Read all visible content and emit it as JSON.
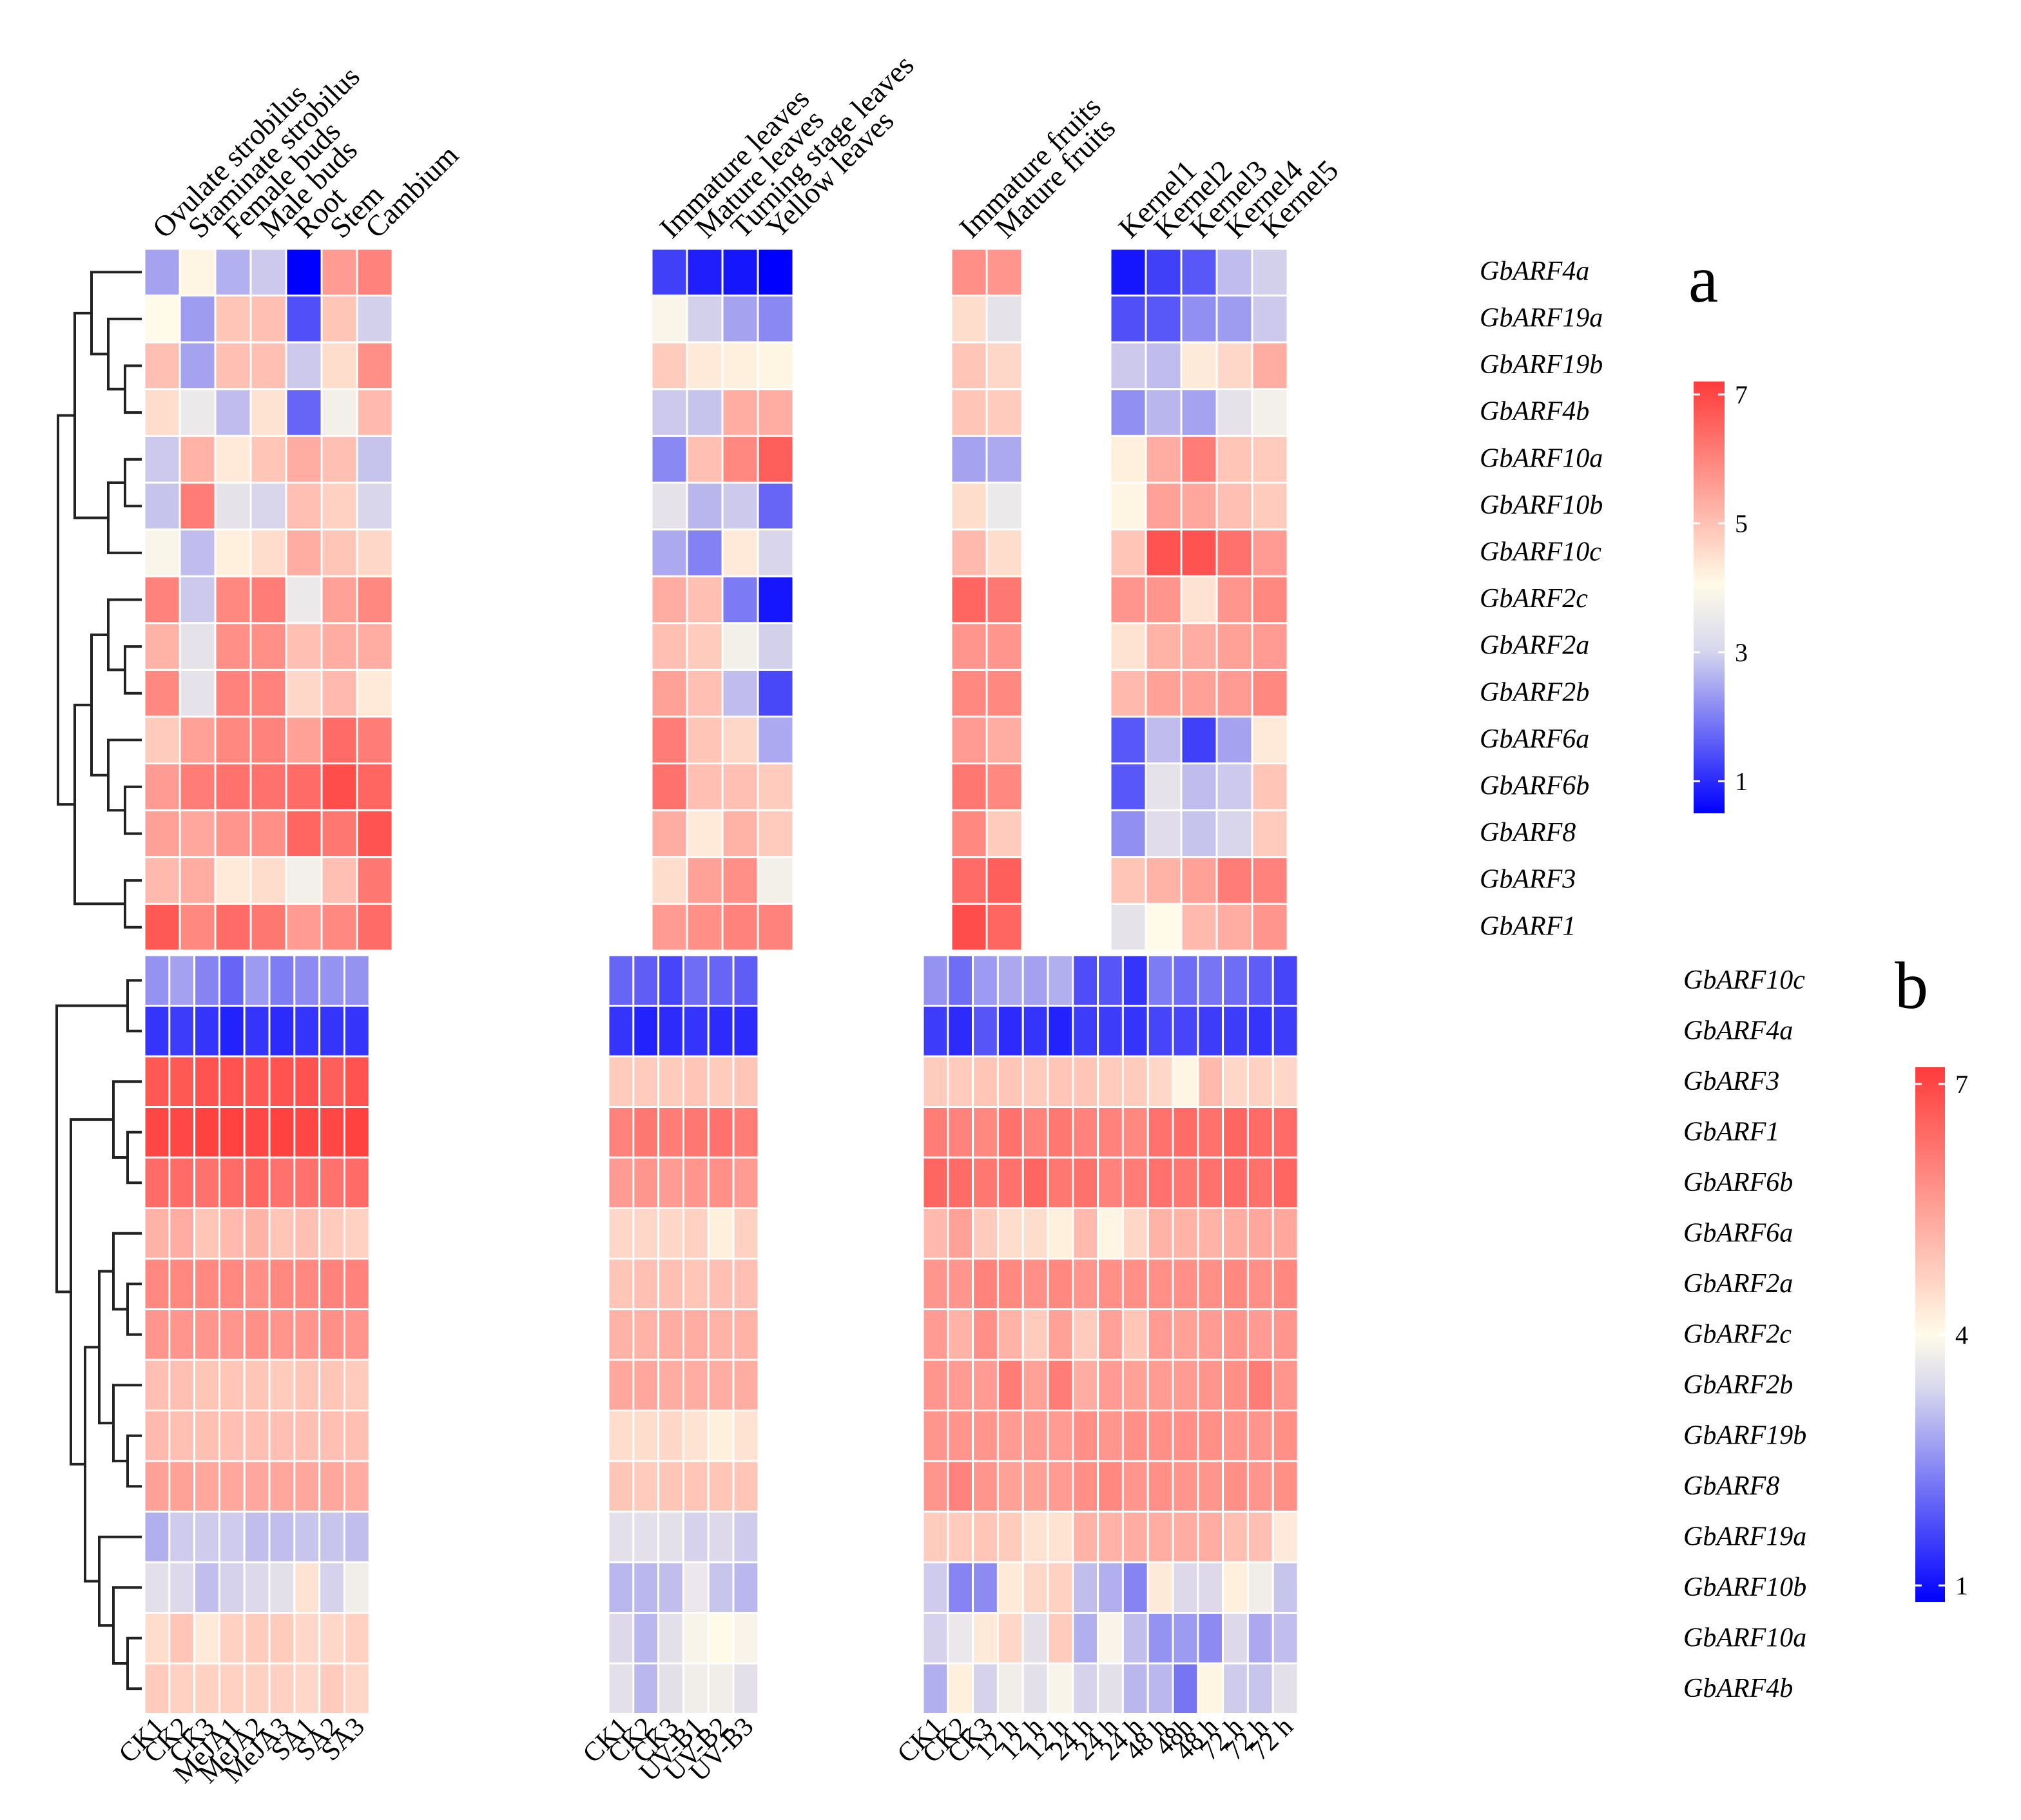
{
  "chart_data": [
    {
      "type": "heatmap",
      "panel": "a",
      "rows": [
        "GbARF4a",
        "GbARF19a",
        "GbARF19b",
        "GbARF4b",
        "GbARF10a",
        "GbARF10b",
        "GbARF10c",
        "GbARF2c",
        "GbARF2a",
        "GbARF2b",
        "GbARF6a",
        "GbARF6b",
        "GbARF8",
        "GbARF3",
        "GbARF1"
      ],
      "column_groups": [
        [
          "Ovulate strobilus",
          "Staminate strobilus",
          "Female buds",
          "Male buds",
          "Root",
          "Stem",
          "Cambium"
        ],
        [
          "Immature leaves",
          "Mature leaves",
          "Turning stage leaves",
          "Yellow leaves"
        ],
        [
          "Immature fruits",
          "Mature fruits"
        ],
        [
          "Kernel1",
          "Kernel2",
          "Kernel3",
          "Kernel4",
          "Kernel5"
        ]
      ],
      "values": [
        [
          2.6,
          4.1,
          2.8,
          3.2,
          0.5,
          5.6,
          6.0,
          1.2,
          0.8,
          0.7,
          0.5,
          5.8,
          5.7,
          0.7,
          1.2,
          1.5,
          3.0,
          3.3
        ],
        [
          4.0,
          2.5,
          4.9,
          5.0,
          1.4,
          4.9,
          3.3,
          3.9,
          3.3,
          2.6,
          2.2,
          4.5,
          3.6,
          1.4,
          1.5,
          2.3,
          2.5,
          3.2
        ],
        [
          5.0,
          2.6,
          5.0,
          5.0,
          3.2,
          4.5,
          5.8,
          4.8,
          4.3,
          4.2,
          4.1,
          4.9,
          4.6,
          3.2,
          3.0,
          4.3,
          4.6,
          5.3
        ],
        [
          4.5,
          3.7,
          3.0,
          4.4,
          1.7,
          3.8,
          5.1,
          3.2,
          3.1,
          5.3,
          5.3,
          4.9,
          4.8,
          2.3,
          2.9,
          2.6,
          3.6,
          3.8
        ],
        [
          3.2,
          5.2,
          4.3,
          4.9,
          5.3,
          5.0,
          3.1,
          2.2,
          5.0,
          5.9,
          6.6,
          2.6,
          2.7,
          4.2,
          5.3,
          6.1,
          4.9,
          4.8
        ],
        [
          3.1,
          6.1,
          3.6,
          3.4,
          5.0,
          4.7,
          3.4,
          3.6,
          2.9,
          3.2,
          1.7,
          4.5,
          3.7,
          4.1,
          5.5,
          5.4,
          5.0,
          4.8
        ],
        [
          3.9,
          3.0,
          4.2,
          4.5,
          5.3,
          4.9,
          4.6,
          2.7,
          2.1,
          4.3,
          3.4,
          5.1,
          4.5,
          4.9,
          6.8,
          6.8,
          6.3,
          5.6
        ],
        [
          6.0,
          3.2,
          5.9,
          6.1,
          3.7,
          5.5,
          5.9,
          5.3,
          5.0,
          2.0,
          0.7,
          6.5,
          6.2,
          5.7,
          5.7,
          4.4,
          5.7,
          5.9
        ],
        [
          5.2,
          3.6,
          5.8,
          5.8,
          5.0,
          5.3,
          5.3,
          5.0,
          4.8,
          3.8,
          3.3,
          5.7,
          5.7,
          4.4,
          5.2,
          5.3,
          5.5,
          5.6
        ],
        [
          5.9,
          3.6,
          6.0,
          6.0,
          4.6,
          5.1,
          4.3,
          5.5,
          5.0,
          3.0,
          1.3,
          5.9,
          5.9,
          5.1,
          5.5,
          5.5,
          5.6,
          5.9
        ],
        [
          4.8,
          5.5,
          5.9,
          6.0,
          5.5,
          6.4,
          6.1,
          6.1,
          4.9,
          4.6,
          2.7,
          5.6,
          5.3,
          1.5,
          3.0,
          1.2,
          2.6,
          4.3
        ],
        [
          5.6,
          6.1,
          6.3,
          6.3,
          6.4,
          6.9,
          6.5,
          6.3,
          5.0,
          5.0,
          4.8,
          6.2,
          5.9,
          1.5,
          3.6,
          3.0,
          3.2,
          4.9
        ],
        [
          5.5,
          5.4,
          5.7,
          5.8,
          6.5,
          6.2,
          6.8,
          5.3,
          4.3,
          5.2,
          4.8,
          5.9,
          4.8,
          2.3,
          3.5,
          3.1,
          3.4,
          4.8
        ],
        [
          5.1,
          5.3,
          4.3,
          4.5,
          3.8,
          5.0,
          6.2,
          4.5,
          5.5,
          5.8,
          3.8,
          6.4,
          6.6,
          4.9,
          5.2,
          5.5,
          6.1,
          6.0
        ],
        [
          6.7,
          5.9,
          6.4,
          6.2,
          5.6,
          5.9,
          6.4,
          5.6,
          5.8,
          6.0,
          6.0,
          6.9,
          6.5,
          3.6,
          4.0,
          5.1,
          5.3,
          5.7
        ]
      ],
      "colorbar": {
        "ticks": [
          1,
          3,
          5,
          7
        ],
        "range": [
          0.5,
          7.2
        ]
      },
      "colors": {
        "low": "#0000ff",
        "mid": "#fffbe8",
        "high": "#ff3b3b"
      },
      "tag": "a"
    },
    {
      "type": "heatmap",
      "panel": "b",
      "rows": [
        "GbARF10c",
        "GbARF4a",
        "GbARF3",
        "GbARF1",
        "GbARF6b",
        "GbARF6a",
        "GbARF2a",
        "GbARF2c",
        "GbARF2b",
        "GbARF19b",
        "GbARF8",
        "GbARF19a",
        "GbARF10b",
        "GbARF10a",
        "GbARF4b"
      ],
      "column_groups": [
        [
          "CK1",
          "CK2",
          "CK3",
          "MeJA1",
          "MeJA2",
          "MeJA3",
          "SA1",
          "SA2",
          "SA3"
        ],
        [
          "CK1",
          "CK2",
          "CK3",
          "UV-B1",
          "UV-B2",
          "UV-B3"
        ],
        [
          "CK1",
          "CK2",
          "CK3",
          "12 h",
          "12 h",
          "12 h",
          "24 h",
          "24 h",
          "24 h",
          "48 h",
          "48h",
          "48 h",
          "72 h",
          "72 h",
          "72 h"
        ]
      ],
      "values": [
        [
          2.5,
          2.7,
          2.3,
          1.9,
          2.6,
          2.2,
          2.4,
          2.5,
          2.5,
          1.9,
          1.8,
          1.5,
          2.0,
          1.9,
          1.8,
          2.5,
          2.0,
          2.6,
          2.8,
          2.7,
          2.9,
          1.6,
          1.7,
          1.3,
          2.2,
          2.0,
          2.1,
          2.0,
          1.8,
          1.5
        ],
        [
          1.3,
          1.4,
          1.3,
          1.1,
          1.3,
          1.2,
          1.3,
          1.3,
          1.3,
          1.3,
          1.1,
          1.2,
          1.3,
          1.2,
          1.2,
          1.4,
          1.2,
          1.7,
          1.2,
          1.3,
          1.1,
          1.4,
          1.4,
          1.3,
          1.5,
          1.5,
          1.4,
          1.4,
          1.3,
          1.4
        ],
        [
          6.7,
          6.7,
          6.8,
          6.8,
          6.7,
          6.8,
          6.8,
          6.6,
          6.8,
          4.8,
          4.8,
          4.8,
          4.9,
          4.8,
          4.9,
          4.8,
          4.8,
          4.9,
          4.9,
          4.8,
          4.9,
          4.9,
          4.8,
          4.8,
          4.6,
          4.1,
          5.1,
          4.6,
          4.7,
          4.6
        ],
        [
          7.0,
          7.0,
          7.1,
          7.1,
          7.0,
          7.1,
          7.0,
          7.0,
          7.1,
          6.0,
          6.2,
          6.1,
          6.2,
          6.3,
          6.1,
          6.1,
          6.0,
          5.9,
          6.3,
          6.0,
          6.2,
          6.0,
          6.0,
          5.9,
          6.3,
          6.4,
          6.3,
          6.5,
          6.4,
          6.4
        ],
        [
          6.4,
          6.4,
          6.3,
          6.4,
          6.5,
          6.3,
          6.3,
          6.3,
          6.4,
          5.6,
          5.7,
          5.6,
          5.7,
          5.8,
          5.6,
          6.5,
          6.4,
          6.2,
          6.3,
          6.5,
          6.2,
          6.3,
          6.0,
          6.1,
          6.3,
          6.2,
          6.3,
          6.4,
          6.3,
          6.5
        ],
        [
          5.2,
          5.3,
          4.9,
          5.1,
          5.2,
          4.9,
          5.0,
          4.8,
          4.7,
          4.6,
          4.6,
          4.6,
          4.7,
          4.2,
          4.7,
          5.1,
          5.5,
          4.8,
          4.5,
          4.5,
          4.2,
          5.1,
          4.1,
          4.6,
          5.2,
          5.2,
          5.2,
          5.3,
          5.4,
          5.4
        ],
        [
          5.9,
          5.9,
          5.9,
          5.9,
          5.8,
          5.9,
          5.9,
          6.0,
          6.0,
          4.9,
          5.0,
          5.0,
          4.9,
          5.0,
          5.0,
          5.7,
          5.7,
          6.0,
          5.9,
          5.8,
          5.9,
          5.7,
          5.8,
          5.8,
          5.8,
          5.8,
          5.8,
          5.9,
          5.8,
          5.9
        ],
        [
          5.7,
          5.7,
          5.7,
          5.7,
          5.8,
          5.7,
          5.7,
          5.8,
          5.7,
          5.2,
          5.2,
          5.3,
          5.3,
          5.2,
          5.2,
          5.6,
          5.2,
          5.8,
          5.2,
          4.8,
          5.5,
          4.8,
          5.5,
          4.9,
          5.6,
          5.5,
          5.6,
          5.7,
          5.6,
          5.7
        ],
        [
          5.0,
          5.0,
          4.9,
          4.9,
          4.9,
          4.8,
          4.9,
          4.9,
          4.8,
          5.4,
          5.4,
          5.3,
          5.3,
          5.3,
          5.3,
          5.7,
          5.6,
          5.6,
          6.1,
          5.5,
          6.1,
          5.3,
          5.6,
          5.5,
          5.6,
          5.6,
          5.7,
          5.8,
          6.1,
          5.7
        ],
        [
          5.1,
          5.0,
          5.0,
          5.0,
          5.0,
          5.0,
          5.0,
          5.0,
          5.0,
          4.5,
          4.5,
          4.6,
          4.4,
          4.2,
          4.4,
          5.7,
          5.7,
          5.7,
          5.6,
          5.6,
          5.6,
          5.8,
          5.7,
          5.8,
          5.8,
          5.8,
          5.8,
          5.7,
          5.7,
          5.8
        ],
        [
          5.5,
          5.5,
          5.4,
          5.4,
          5.4,
          5.4,
          5.4,
          5.4,
          5.3,
          4.9,
          4.8,
          4.9,
          4.9,
          4.9,
          4.9,
          5.7,
          6.0,
          5.7,
          5.5,
          5.5,
          5.6,
          5.8,
          5.9,
          5.7,
          5.8,
          5.7,
          5.7,
          5.8,
          5.7,
          5.8
        ],
        [
          2.9,
          3.3,
          3.3,
          3.3,
          3.1,
          3.1,
          3.2,
          3.2,
          3.1,
          3.6,
          3.6,
          3.6,
          3.4,
          3.5,
          3.3,
          4.8,
          4.8,
          4.9,
          4.8,
          4.4,
          4.4,
          5.2,
          5.2,
          5.3,
          5.3,
          5.3,
          5.3,
          5.0,
          5.0,
          4.3
        ],
        [
          3.6,
          3.5,
          3.1,
          3.4,
          3.5,
          3.6,
          4.4,
          3.4,
          3.8,
          3.0,
          3.0,
          3.1,
          3.7,
          3.2,
          3.0,
          3.3,
          2.3,
          2.4,
          4.3,
          4.6,
          4.7,
          3.1,
          2.9,
          2.3,
          4.3,
          3.5,
          3.5,
          4.2,
          3.8,
          3.2
        ],
        [
          4.5,
          4.9,
          4.3,
          4.7,
          4.8,
          4.8,
          4.6,
          4.6,
          4.7,
          3.5,
          3.0,
          3.6,
          3.9,
          4.0,
          3.9,
          3.4,
          3.7,
          4.3,
          4.6,
          3.6,
          4.8,
          2.9,
          3.9,
          3.1,
          2.5,
          2.6,
          2.4,
          3.5,
          2.8,
          3.1
        ],
        [
          4.8,
          4.7,
          4.7,
          4.7,
          4.7,
          4.7,
          4.6,
          4.8,
          4.6,
          3.6,
          3.0,
          3.6,
          3.8,
          3.8,
          3.6,
          2.9,
          4.2,
          3.4,
          3.8,
          3.6,
          3.9,
          3.4,
          3.6,
          3.0,
          3.0,
          2.1,
          4.1,
          3.3,
          3.2,
          3.6
        ]
      ],
      "colorbar": {
        "ticks": [
          1,
          4,
          7
        ],
        "range": [
          0.8,
          7.2
        ]
      },
      "colors": {
        "low": "#0000ff",
        "mid": "#fffbe8",
        "high": "#ff3b3b"
      },
      "tag": "b"
    }
  ]
}
